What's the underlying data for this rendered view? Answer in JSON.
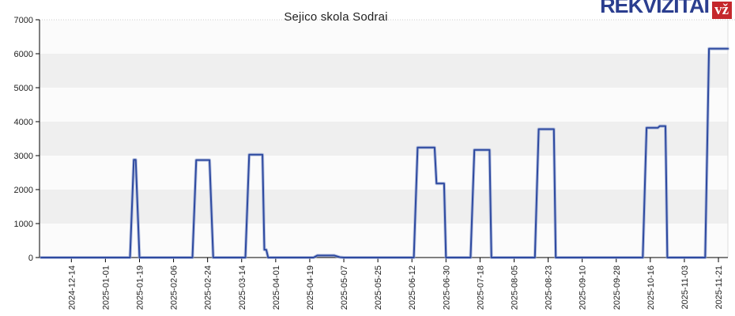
{
  "title": "Sejico skola Sodrai",
  "logo": {
    "text": "REKVIZITAI",
    "badge": "vž"
  },
  "colors": {
    "line_core": "#2e4aa0",
    "line_halo": "#97a6d3",
    "band_gray": "#efefef",
    "plot_bg": "#fbfbfb",
    "axis": "#000000",
    "tick_label": "#222222",
    "grid_dotted": "#cccccc",
    "logo_blue": "#2b3e8f",
    "logo_red": "#c5282c"
  },
  "chart_data": {
    "type": "line",
    "title": "Sejico skola Sodrai",
    "xlabel": "",
    "ylabel": "",
    "x_domain": [
      "2024-11-28",
      "2025-11-26"
    ],
    "ylim": [
      0,
      7000
    ],
    "y_ticks": [
      0,
      1000,
      2000,
      3000,
      4000,
      5000,
      6000,
      7000
    ],
    "shaded_bands": [
      [
        1000,
        2000
      ],
      [
        3000,
        4000
      ],
      [
        5000,
        6000
      ]
    ],
    "grid": "dotted-top-only",
    "legend": "none",
    "x_tick_labels": [
      "2024-12-14",
      "2025-01-01",
      "2025-01-19",
      "2025-02-06",
      "2025-02-24",
      "2025-03-14",
      "2025-04-01",
      "2025-04-19",
      "2025-05-07",
      "2025-05-25",
      "2025-06-12",
      "2025-06-30",
      "2025-07-18",
      "2025-08-05",
      "2025-08-23",
      "2025-09-10",
      "2025-09-28",
      "2025-10-16",
      "2025-11-03",
      "2025-11-21"
    ],
    "series": [
      {
        "name": "Sejico skola Sodrai",
        "points": [
          [
            "2024-11-28",
            0
          ],
          [
            "2025-01-14",
            0
          ],
          [
            "2025-01-16",
            2880
          ],
          [
            "2025-01-17",
            2880
          ],
          [
            "2025-01-19",
            0
          ],
          [
            "2025-02-16",
            0
          ],
          [
            "2025-02-18",
            2870
          ],
          [
            "2025-02-25",
            2870
          ],
          [
            "2025-02-27",
            0
          ],
          [
            "2025-03-16",
            0
          ],
          [
            "2025-03-18",
            3030
          ],
          [
            "2025-03-25",
            3030
          ],
          [
            "2025-03-26",
            230
          ],
          [
            "2025-03-27",
            230
          ],
          [
            "2025-03-28",
            0
          ],
          [
            "2025-04-21",
            0
          ],
          [
            "2025-04-23",
            60
          ],
          [
            "2025-05-02",
            60
          ],
          [
            "2025-05-05",
            10
          ],
          [
            "2025-05-07",
            0
          ],
          [
            "2025-06-13",
            0
          ],
          [
            "2025-06-15",
            3240
          ],
          [
            "2025-06-24",
            3240
          ],
          [
            "2025-06-25",
            2180
          ],
          [
            "2025-06-29",
            2180
          ],
          [
            "2025-06-30",
            0
          ],
          [
            "2025-07-13",
            0
          ],
          [
            "2025-07-15",
            3170
          ],
          [
            "2025-07-23",
            3170
          ],
          [
            "2025-07-24",
            0
          ],
          [
            "2025-08-16",
            0
          ],
          [
            "2025-08-18",
            3780
          ],
          [
            "2025-08-26",
            3780
          ],
          [
            "2025-08-27",
            0
          ],
          [
            "2025-10-12",
            0
          ],
          [
            "2025-10-14",
            3820
          ],
          [
            "2025-10-20",
            3820
          ],
          [
            "2025-10-21",
            3870
          ],
          [
            "2025-10-24",
            3870
          ],
          [
            "2025-10-25",
            0
          ],
          [
            "2025-11-14",
            0
          ],
          [
            "2025-11-16",
            6150
          ],
          [
            "2025-11-26",
            6150
          ]
        ]
      }
    ]
  }
}
